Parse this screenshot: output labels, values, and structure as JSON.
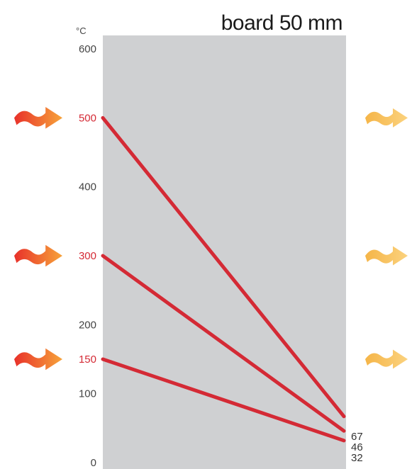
{
  "chart_data": {
    "type": "line",
    "title": "board 50 mm",
    "y_unit": "°C",
    "ylim": [
      0,
      600
    ],
    "y_ticks": [
      {
        "value": 0,
        "label": "0",
        "highlight": false
      },
      {
        "value": 100,
        "label": "100",
        "highlight": false
      },
      {
        "value": 150,
        "label": "150",
        "highlight": true
      },
      {
        "value": 200,
        "label": "200",
        "highlight": false
      },
      {
        "value": 300,
        "label": "300",
        "highlight": true
      },
      {
        "value": 400,
        "label": "400",
        "highlight": false
      },
      {
        "value": 500,
        "label": "500",
        "highlight": true
      },
      {
        "value": 600,
        "label": "600",
        "highlight": false
      }
    ],
    "series": [
      {
        "start": 500,
        "end": 67,
        "end_label": "67"
      },
      {
        "start": 300,
        "end": 46,
        "end_label": "46"
      },
      {
        "start": 150,
        "end": 32,
        "end_label": "32"
      }
    ],
    "heat_arrow_levels": [
      500,
      300,
      150
    ],
    "line_color": "#d42a35",
    "board_color": "#cfd0d2",
    "hot_arrow_colors": [
      "#e8312a",
      "#f7a33a"
    ],
    "cool_arrow_colors": [
      "#f5b548",
      "#fbd27e"
    ]
  }
}
